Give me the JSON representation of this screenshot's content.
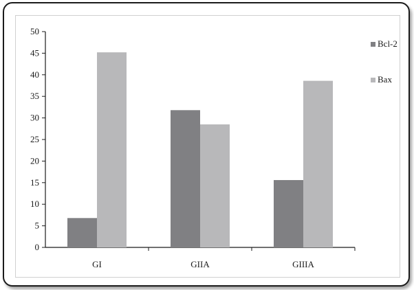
{
  "chart_data": {
    "type": "bar",
    "categories": [
      "GI",
      "GIIA",
      "GIIIA"
    ],
    "series": [
      {
        "name": "Bcl-2",
        "values": [
          6.8,
          31.8,
          15.6
        ],
        "color": "#808083"
      },
      {
        "name": "Bax",
        "values": [
          45.2,
          28.5,
          38.6
        ],
        "color": "#b8b8ba"
      }
    ],
    "title": "",
    "xlabel": "",
    "ylabel": "",
    "ylim": [
      0,
      50
    ],
    "yticks": [
      "0",
      "5",
      "10",
      "15",
      "20",
      "25",
      "30",
      "35",
      "40",
      "45",
      "50"
    ],
    "grid": false,
    "legend_position": "right"
  }
}
